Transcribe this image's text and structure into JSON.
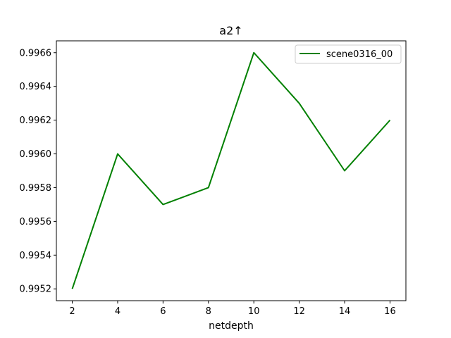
{
  "chart_data": {
    "type": "line",
    "title": "a2↑",
    "xlabel": "netdepth",
    "ylabel": "",
    "x": [
      2,
      4,
      6,
      8,
      10,
      12,
      14,
      16
    ],
    "xticks": [
      2,
      4,
      6,
      8,
      10,
      12,
      14,
      16
    ],
    "yticks": [
      0.9952,
      0.9954,
      0.9956,
      0.9958,
      0.996,
      0.9962,
      0.9964,
      0.9966
    ],
    "ytick_labels": [
      "0.9952",
      "0.9954",
      "0.9956",
      "0.9958",
      "0.9960",
      "0.9962",
      "0.9964",
      "0.9966"
    ],
    "xlim": [
      1.3,
      16.7
    ],
    "ylim": [
      0.99513,
      0.99667
    ],
    "grid": false,
    "legend_position": "top-right",
    "series": [
      {
        "name": "scene0316_00",
        "color": "#008000",
        "values": [
          0.9952,
          0.996,
          0.9957,
          0.9958,
          0.9966,
          0.9963,
          0.9959,
          0.9962
        ]
      }
    ]
  }
}
